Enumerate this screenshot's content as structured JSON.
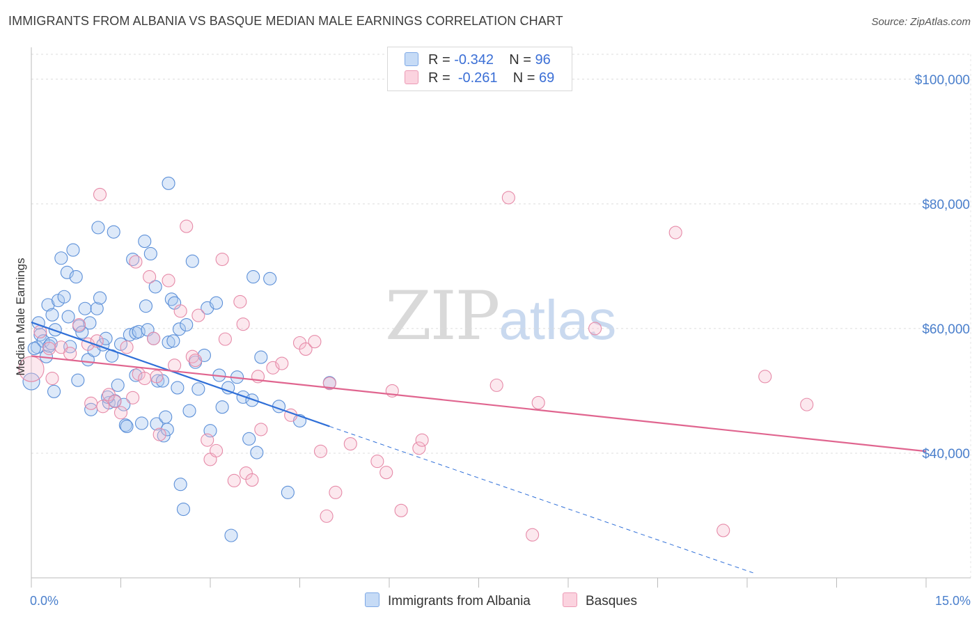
{
  "header": {
    "title": "IMMIGRANTS FROM ALBANIA VS BASQUE MEDIAN MALE EARNINGS CORRELATION CHART",
    "source": "Source: ZipAtlas.com"
  },
  "watermark": {
    "zip": "ZIP",
    "atlas": "atlas"
  },
  "legend": {
    "rows": [
      {
        "r_label": "R =",
        "r_value": "-0.342",
        "n_label": "N =",
        "n_value": "96",
        "color": "#aac8f0"
      },
      {
        "r_label": "R =",
        "r_value": "-0.261",
        "n_label": "N =",
        "n_value": "69",
        "color": "#f6bccd"
      }
    ]
  },
  "bottom_legend": {
    "items": [
      {
        "label": "Immigrants from Albania",
        "color": "#aac8f0"
      },
      {
        "label": "Basques",
        "color": "#f6bccd"
      }
    ]
  },
  "chart_data": {
    "type": "scatter",
    "title": "IMMIGRANTS FROM ALBANIA VS BASQUE MEDIAN MALE EARNINGS CORRELATION CHART",
    "ylabel": "Median Male Earnings",
    "xlabel": "",
    "xlim": [
      0,
      15
    ],
    "ylim": [
      20000,
      104000
    ],
    "x_tick_labels": [
      "0.0%",
      "15.0%"
    ],
    "y_ticks": [
      40000,
      60000,
      80000,
      100000
    ],
    "y_tick_labels": [
      "$40,000",
      "$60,000",
      "$80,000",
      "$100,000"
    ],
    "grid": true,
    "legend_position": "top-center",
    "colors": {
      "albania_fill": "#aac8f0",
      "albania_stroke": "#5b8fd8",
      "albania_line": "#2f6fd8",
      "basque_fill": "#f6bccd",
      "basque_stroke": "#e68aa8",
      "basque_line": "#e0658f"
    },
    "series": [
      {
        "name": "Immigrants from Albania",
        "trend": {
          "x": [
            0,
            5,
            12.1
          ],
          "y": [
            61000,
            44300,
            20800
          ]
        },
        "points": [
          [
            0.0,
            51500
          ],
          [
            0.1,
            57000
          ],
          [
            0.12,
            60900
          ],
          [
            0.15,
            59000
          ],
          [
            0.2,
            58000
          ],
          [
            0.25,
            55500
          ],
          [
            0.28,
            63800
          ],
          [
            0.3,
            57200
          ],
          [
            0.35,
            62200
          ],
          [
            0.38,
            49900
          ],
          [
            0.4,
            59800
          ],
          [
            0.45,
            64500
          ],
          [
            0.5,
            71300
          ],
          [
            0.55,
            65100
          ],
          [
            0.6,
            69000
          ],
          [
            0.62,
            61900
          ],
          [
            0.65,
            57100
          ],
          [
            0.7,
            72600
          ],
          [
            0.75,
            68300
          ],
          [
            0.78,
            51700
          ],
          [
            0.8,
            60400
          ],
          [
            0.85,
            59400
          ],
          [
            0.9,
            63200
          ],
          [
            0.95,
            55000
          ],
          [
            0.98,
            60900
          ],
          [
            1.0,
            47000
          ],
          [
            1.05,
            56500
          ],
          [
            1.1,
            63200
          ],
          [
            1.12,
            76200
          ],
          [
            1.15,
            64900
          ],
          [
            1.2,
            57400
          ],
          [
            1.25,
            58400
          ],
          [
            1.3,
            48100
          ],
          [
            1.35,
            55600
          ],
          [
            1.38,
            75500
          ],
          [
            1.4,
            48400
          ],
          [
            1.45,
            50900
          ],
          [
            1.5,
            57500
          ],
          [
            1.55,
            47800
          ],
          [
            1.58,
            44500
          ],
          [
            1.6,
            44300
          ],
          [
            1.65,
            59000
          ],
          [
            1.7,
            71100
          ],
          [
            1.75,
            59300
          ],
          [
            1.8,
            59500
          ],
          [
            1.85,
            44800
          ],
          [
            1.9,
            74000
          ],
          [
            1.92,
            63600
          ],
          [
            1.95,
            59800
          ],
          [
            2.0,
            72000
          ],
          [
            2.05,
            58400
          ],
          [
            2.08,
            66700
          ],
          [
            2.1,
            44700
          ],
          [
            2.12,
            51600
          ],
          [
            2.2,
            51600
          ],
          [
            2.22,
            42800
          ],
          [
            2.25,
            45800
          ],
          [
            2.28,
            43800
          ],
          [
            2.3,
            57800
          ],
          [
            2.35,
            64700
          ],
          [
            2.4,
            64100
          ],
          [
            2.45,
            50500
          ],
          [
            2.48,
            59900
          ],
          [
            2.5,
            35000
          ],
          [
            2.55,
            31000
          ],
          [
            2.6,
            60600
          ],
          [
            2.65,
            46800
          ],
          [
            2.7,
            70800
          ],
          [
            2.75,
            54600
          ],
          [
            2.8,
            50300
          ],
          [
            2.9,
            55700
          ],
          [
            2.95,
            63300
          ],
          [
            3.0,
            43600
          ],
          [
            3.1,
            64100
          ],
          [
            3.15,
            52500
          ],
          [
            3.2,
            47400
          ],
          [
            3.3,
            50500
          ],
          [
            3.35,
            26800
          ],
          [
            3.45,
            52200
          ],
          [
            3.55,
            49000
          ],
          [
            3.65,
            42300
          ],
          [
            3.7,
            48500
          ],
          [
            3.72,
            68300
          ],
          [
            3.78,
            40100
          ],
          [
            3.85,
            55400
          ],
          [
            4.0,
            68000
          ],
          [
            4.15,
            47500
          ],
          [
            4.3,
            33700
          ],
          [
            4.5,
            45200
          ],
          [
            5.0,
            51300
          ],
          [
            0.05,
            56800
          ],
          [
            0.33,
            57600
          ],
          [
            1.28,
            49000
          ],
          [
            2.38,
            58000
          ],
          [
            2.3,
            83300
          ],
          [
            1.75,
            52500
          ]
        ]
      },
      {
        "name": "Basques",
        "trend": {
          "x": [
            0,
            15
          ],
          "y": [
            55600,
            40300
          ]
        },
        "points": [
          [
            0.0,
            53500
          ],
          [
            0.15,
            59500
          ],
          [
            0.3,
            56800
          ],
          [
            0.35,
            52000
          ],
          [
            0.5,
            57000
          ],
          [
            0.65,
            56000
          ],
          [
            0.8,
            60600
          ],
          [
            0.95,
            57500
          ],
          [
            1.0,
            48000
          ],
          [
            1.1,
            58000
          ],
          [
            1.2,
            47500
          ],
          [
            1.3,
            49400
          ],
          [
            1.4,
            48300
          ],
          [
            1.5,
            46500
          ],
          [
            1.6,
            57000
          ],
          [
            1.7,
            48900
          ],
          [
            1.75,
            70700
          ],
          [
            1.8,
            52700
          ],
          [
            1.9,
            52000
          ],
          [
            1.98,
            68300
          ],
          [
            2.05,
            58400
          ],
          [
            2.1,
            52300
          ],
          [
            2.15,
            43000
          ],
          [
            2.3,
            67700
          ],
          [
            2.4,
            54100
          ],
          [
            2.5,
            62800
          ],
          [
            2.6,
            76400
          ],
          [
            2.7,
            55500
          ],
          [
            2.75,
            54900
          ],
          [
            2.8,
            62100
          ],
          [
            2.95,
            42100
          ],
          [
            3.0,
            39000
          ],
          [
            3.1,
            40400
          ],
          [
            3.2,
            71100
          ],
          [
            3.25,
            58300
          ],
          [
            3.4,
            35600
          ],
          [
            3.5,
            64300
          ],
          [
            3.55,
            60700
          ],
          [
            3.6,
            36800
          ],
          [
            3.7,
            35700
          ],
          [
            3.8,
            52300
          ],
          [
            3.85,
            43800
          ],
          [
            4.05,
            53700
          ],
          [
            4.2,
            54400
          ],
          [
            4.35,
            46100
          ],
          [
            4.5,
            57700
          ],
          [
            4.6,
            56700
          ],
          [
            4.75,
            57900
          ],
          [
            4.85,
            40300
          ],
          [
            4.95,
            29900
          ],
          [
            5.0,
            51200
          ],
          [
            5.1,
            33700
          ],
          [
            5.35,
            41500
          ],
          [
            5.8,
            38700
          ],
          [
            5.95,
            36900
          ],
          [
            6.05,
            50000
          ],
          [
            6.2,
            30800
          ],
          [
            6.5,
            40800
          ],
          [
            6.55,
            42100
          ],
          [
            7.8,
            50900
          ],
          [
            8.0,
            81000
          ],
          [
            8.4,
            26900
          ],
          [
            8.5,
            48100
          ],
          [
            9.45,
            60000
          ],
          [
            10.8,
            75400
          ],
          [
            11.6,
            27600
          ],
          [
            12.3,
            52300
          ],
          [
            13.0,
            47800
          ],
          [
            1.15,
            81500
          ]
        ]
      }
    ]
  }
}
